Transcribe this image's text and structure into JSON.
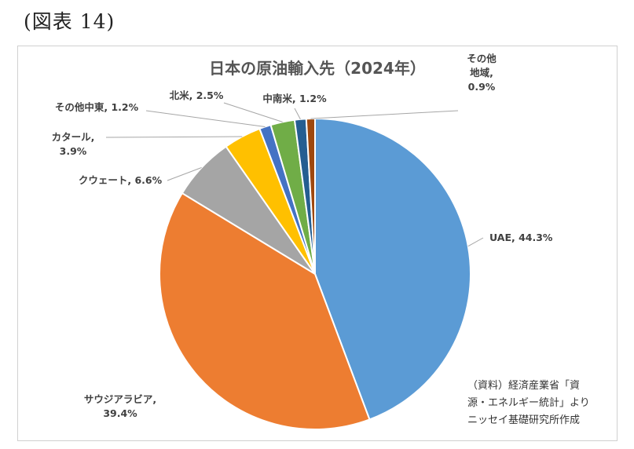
{
  "figure_label": "(図表 14)",
  "chart_data": {
    "type": "pie",
    "title": "日本の原油輸入先（2024年）",
    "slices": [
      {
        "name": "UAE",
        "value": 44.3,
        "label": [
          "UAE, 44.3%"
        ],
        "color": "#5b9bd5"
      },
      {
        "name": "サウジアラビア",
        "value": 39.4,
        "label": [
          "サウジアラビア,",
          "39.4%"
        ],
        "color": "#ed7d31"
      },
      {
        "name": "クウェート",
        "value": 6.6,
        "label": [
          "クウェート, 6.6%"
        ],
        "color": "#a5a5a5"
      },
      {
        "name": "カタール",
        "value": 3.9,
        "label": [
          "カタール,",
          "3.9%"
        ],
        "color": "#ffc000"
      },
      {
        "name": "その他中東",
        "value": 1.2,
        "label": [
          "その他中東, 1.2%"
        ],
        "color": "#4472c4"
      },
      {
        "name": "北米",
        "value": 2.5,
        "label": [
          "北米, 2.5%"
        ],
        "color": "#70ad47"
      },
      {
        "name": "中南米",
        "value": 1.2,
        "label": [
          "中南米, 1.2%"
        ],
        "color": "#255e91"
      },
      {
        "name": "その他地域",
        "value": 0.9,
        "label": [
          "その他",
          "地域,",
          "0.9%"
        ],
        "color": "#9e480e"
      }
    ]
  },
  "source_note": [
    "（資料）経済産業省「資",
    "源・エネルギー統計」より",
    "ニッセイ基礎研究所作成"
  ]
}
